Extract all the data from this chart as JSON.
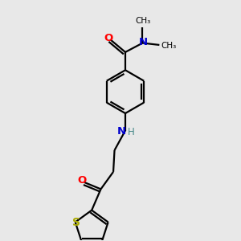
{
  "background_color": "#e8e8e8",
  "bond_color": "#000000",
  "O_color": "#ff0000",
  "N_color": "#0000cc",
  "S_color": "#aaaa00",
  "H_color": "#448888",
  "C_color": "#000000",
  "figsize": [
    3.0,
    3.0
  ],
  "dpi": 100,
  "lw": 1.6,
  "xlim": [
    0,
    10
  ],
  "ylim": [
    0,
    10
  ]
}
